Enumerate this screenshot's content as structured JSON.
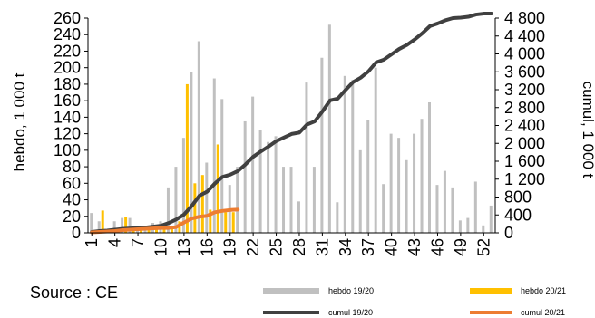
{
  "chart_data": {
    "type": "bar",
    "categories": [
      1,
      2,
      3,
      4,
      5,
      6,
      7,
      8,
      9,
      10,
      11,
      12,
      13,
      14,
      15,
      16,
      17,
      18,
      19,
      20,
      21,
      22,
      23,
      24,
      25,
      26,
      27,
      28,
      29,
      30,
      31,
      32,
      33,
      34,
      35,
      36,
      37,
      38,
      39,
      40,
      41,
      42,
      43,
      44,
      45,
      46,
      47,
      48,
      49,
      50,
      51,
      52,
      53
    ],
    "x_tick_labels": [
      "1",
      "4",
      "7",
      "10",
      "13",
      "16",
      "19",
      "22",
      "25",
      "28",
      "31",
      "34",
      "37",
      "40",
      "43",
      "46",
      "49",
      "52"
    ],
    "x_tick_positions": [
      1,
      4,
      7,
      10,
      13,
      16,
      19,
      22,
      25,
      28,
      31,
      34,
      37,
      40,
      43,
      46,
      49,
      52
    ],
    "ylabel": "hebdo, 1 000 t",
    "y2label": "cumul, 1 000 t",
    "ylim": [
      0,
      260
    ],
    "y2lim": [
      0,
      4800
    ],
    "y_ticks": [
      "0",
      "20",
      "40",
      "60",
      "80",
      "100",
      "120",
      "140",
      "160",
      "180",
      "200",
      "220",
      "240",
      "260"
    ],
    "y2_ticks": [
      "0",
      "400",
      "800",
      "1 200",
      "1 600",
      "2 000",
      "2 400",
      "2 800",
      "3 200",
      "3 600",
      "4 000",
      "4 400",
      "4 800"
    ],
    "grid": false,
    "legend_position": "bottom",
    "series": [
      {
        "name": "hebdo 19/20",
        "type": "bar",
        "axis": "left",
        "color": "#c0c0c0",
        "values": [
          24,
          14,
          2,
          14,
          18,
          18,
          8,
          5,
          12,
          14,
          55,
          80,
          115,
          195,
          232,
          85,
          187,
          162,
          58,
          80,
          135,
          165,
          125,
          110,
          117,
          80,
          80,
          38,
          182,
          80,
          212,
          252,
          37,
          190,
          185,
          100,
          137,
          200,
          59,
          120,
          115,
          88,
          120,
          138,
          158,
          58,
          75,
          55,
          15,
          18,
          62,
          9,
          33
        ]
      },
      {
        "name": "hebdo 20/21",
        "type": "bar",
        "axis": "left",
        "color": "#ffc000",
        "values": [
          2,
          27,
          3,
          3,
          19,
          8,
          6,
          5,
          8,
          8,
          8,
          14,
          180,
          60,
          70,
          28,
          107,
          25,
          25,
          null,
          null,
          null,
          null,
          null,
          null,
          null,
          null,
          null,
          null,
          null,
          null,
          null,
          null,
          null,
          null,
          null,
          null,
          null,
          null,
          null,
          null,
          null,
          null,
          null,
          null,
          null,
          null,
          null,
          null,
          null,
          null,
          null,
          null
        ]
      },
      {
        "name": "cumul 19/20",
        "type": "line",
        "axis": "right",
        "color": "#404040",
        "values": [
          20,
          40,
          50,
          70,
          90,
          100,
          110,
          120,
          140,
          160,
          220,
          300,
          410,
          600,
          830,
          920,
          1100,
          1250,
          1300,
          1380,
          1530,
          1700,
          1820,
          1930,
          2050,
          2130,
          2210,
          2240,
          2420,
          2490,
          2710,
          2960,
          3000,
          3190,
          3370,
          3470,
          3610,
          3810,
          3870,
          3990,
          4110,
          4200,
          4320,
          4460,
          4620,
          4680,
          4750,
          4800,
          4810,
          4830,
          4880,
          4900,
          4900
        ]
      },
      {
        "name": "cumul 20/21",
        "type": "line",
        "axis": "right",
        "color": "#ed7d31",
        "values": [
          10,
          20,
          30,
          40,
          60,
          70,
          80,
          90,
          100,
          110,
          110,
          130,
          230,
          320,
          360,
          380,
          460,
          490,
          510,
          520,
          null,
          null,
          null,
          null,
          null,
          null,
          null,
          null,
          null,
          null,
          null,
          null,
          null,
          null,
          null,
          null,
          null,
          null,
          null,
          null,
          null,
          null,
          null,
          null,
          null,
          null,
          null,
          null,
          null,
          null,
          null,
          null,
          null
        ]
      }
    ]
  },
  "source_text": "Source : CE"
}
